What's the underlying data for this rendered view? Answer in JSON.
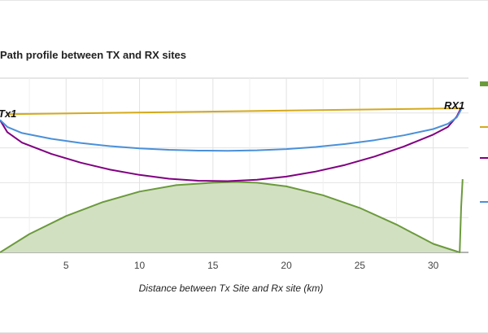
{
  "chart_data": {
    "type": "line",
    "title": "Path profile between TX and RX sites",
    "xlabel": "Distance between Tx Site and Rx site (km)",
    "ylabel": "",
    "x_ticks": [
      5,
      10,
      15,
      20,
      25,
      30
    ],
    "xlim": [
      0.5,
      32.4
    ],
    "ylim": [
      0,
      100
    ],
    "grid": true,
    "legend": "right",
    "site_labels": {
      "tx": "Tx1",
      "rx": "RX1"
    },
    "series": [
      {
        "role": "terrain",
        "type": "area",
        "color": "#6b9a3c",
        "fill": "#d2e0c2",
        "x": [
          0.5,
          2.5,
          5,
          7.5,
          10,
          12.5,
          15,
          16.5,
          18,
          20,
          22.5,
          25,
          27.5,
          30,
          31.8,
          31.9,
          32.0
        ],
        "y": [
          0,
          10.5,
          20.9,
          28.9,
          34.9,
          38.6,
          40.0,
          40.4,
          40.0,
          37.9,
          32.8,
          25.5,
          16.0,
          4.9,
          0,
          26,
          42
        ]
      },
      {
        "role": "line-of-sight",
        "color": "#d4aa1c",
        "x": [
          1,
          31.9
        ],
        "y": [
          79.3,
          82.7
        ]
      },
      {
        "role": "fresnel-lower",
        "color": "#800080",
        "x": [
          0.5,
          1,
          2,
          4,
          6,
          8,
          10,
          12,
          14,
          16,
          18,
          20,
          22,
          24,
          26,
          28,
          30,
          31,
          31.6,
          31.9
        ],
        "y": [
          76,
          69,
          63,
          56.5,
          51.5,
          47.5,
          44.5,
          42.3,
          41.1,
          40.9,
          41.7,
          43.5,
          46.4,
          50.2,
          55,
          60.8,
          67.6,
          72,
          78,
          83
        ]
      },
      {
        "role": "fresnel-upper",
        "color": "#4a90d9",
        "x": [
          0.5,
          1,
          2,
          4,
          6,
          8,
          10,
          12,
          14,
          16,
          18,
          20,
          22,
          24,
          26,
          28,
          30,
          31,
          31.6,
          31.9
        ],
        "y": [
          76,
          72,
          68.5,
          65.2,
          62.8,
          61,
          59.7,
          58.9,
          58.4,
          58.3,
          58.6,
          59.3,
          60.5,
          62.2,
          64.4,
          67.2,
          70.8,
          73.8,
          77.5,
          82
        ]
      }
    ],
    "legend_colors": [
      "#6b9a3c",
      "#d4aa1c",
      "#800080",
      "#4a90d9"
    ]
  }
}
